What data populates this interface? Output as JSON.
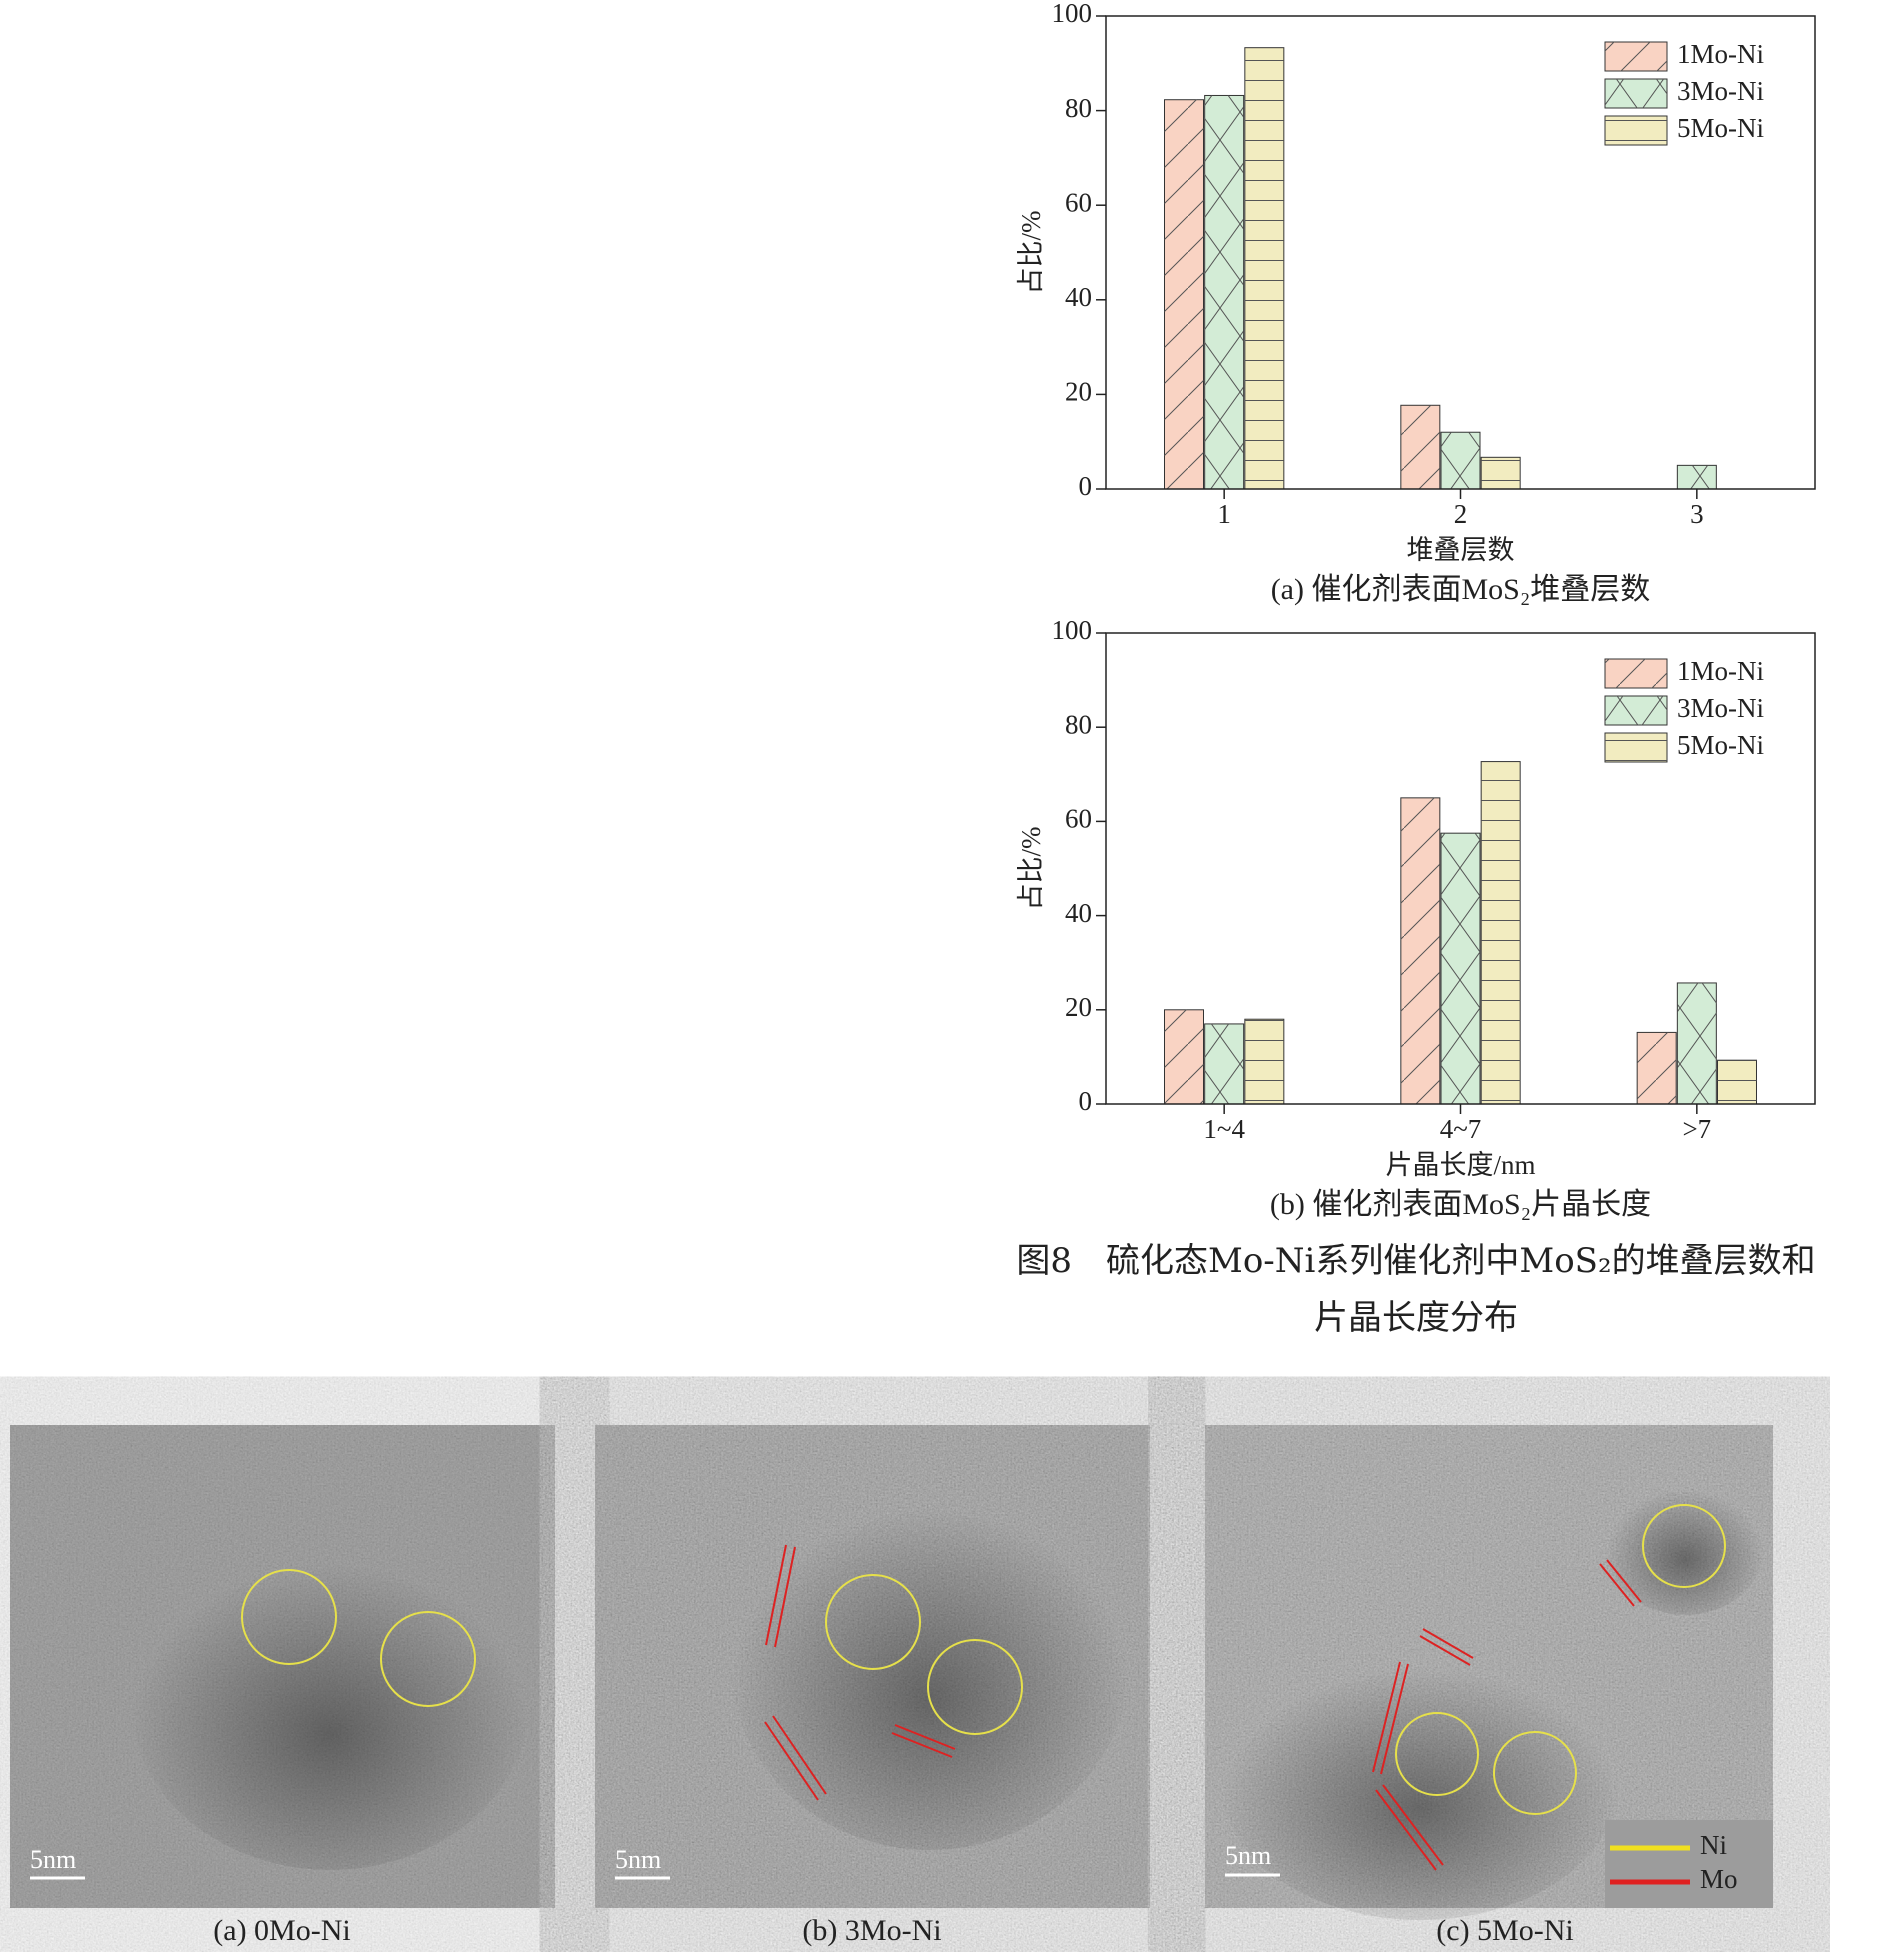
{
  "chart_data": [
    {
      "type": "bar",
      "ylabel": "占比/%",
      "xlabel": "堆叠层数",
      "caption": "(a) 催化剂表面MoS₂堆叠层数",
      "categories": [
        "1",
        "2",
        "3"
      ],
      "series": [
        {
          "name": "1Mo-Ni",
          "color": "#f9d3c3",
          "hatch": "/",
          "values": [
            82.3,
            17.7,
            0
          ]
        },
        {
          "name": "3Mo-Ni",
          "color": "#d3ecd6",
          "hatch": "x",
          "values": [
            83.2,
            12,
            5
          ]
        },
        {
          "name": "5Mo-Ni",
          "color": "#f2ecc0",
          "hatch": "-",
          "values": [
            93.3,
            6.7,
            0
          ]
        }
      ],
      "ylim": [
        0,
        100
      ],
      "yticks": [
        0,
        20,
        40,
        60,
        80,
        100
      ],
      "legend": "upper right"
    },
    {
      "type": "bar",
      "ylabel": "占比/%",
      "xlabel": "片晶长度/nm",
      "caption": "(b) 催化剂表面MoS₂片晶长度",
      "categories": [
        "1~4",
        "4~7",
        ">7"
      ],
      "series": [
        {
          "name": "1Mo-Ni",
          "color": "#f9d3c3",
          "hatch": "/",
          "values": [
            20,
            65,
            15.2
          ]
        },
        {
          "name": "3Mo-Ni",
          "color": "#d3ecd6",
          "hatch": "x",
          "values": [
            17,
            57.5,
            25.7
          ]
        },
        {
          "name": "5Mo-Ni",
          "color": "#f2ecc0",
          "hatch": "-",
          "values": [
            18,
            72.7,
            9.3
          ]
        }
      ],
      "ylim": [
        0,
        100
      ],
      "yticks": [
        0,
        20,
        40,
        60,
        80,
        100
      ],
      "legend": "upper right"
    }
  ],
  "figure_caption": [
    "图8　硫化态Mo-Ni系列催化剂中MoS₂的堆叠层数和",
    "片晶长度分布"
  ],
  "tem_images": [
    {
      "caption": "(a) 0Mo-Ni",
      "scale_bar": "5nm"
    },
    {
      "caption": "(b) 3Mo-Ni",
      "scale_bar": "5nm"
    },
    {
      "caption": "(c) 5Mo-Ni",
      "scale_bar": "5nm",
      "legend": [
        "Ni",
        "Mo"
      ]
    }
  ]
}
